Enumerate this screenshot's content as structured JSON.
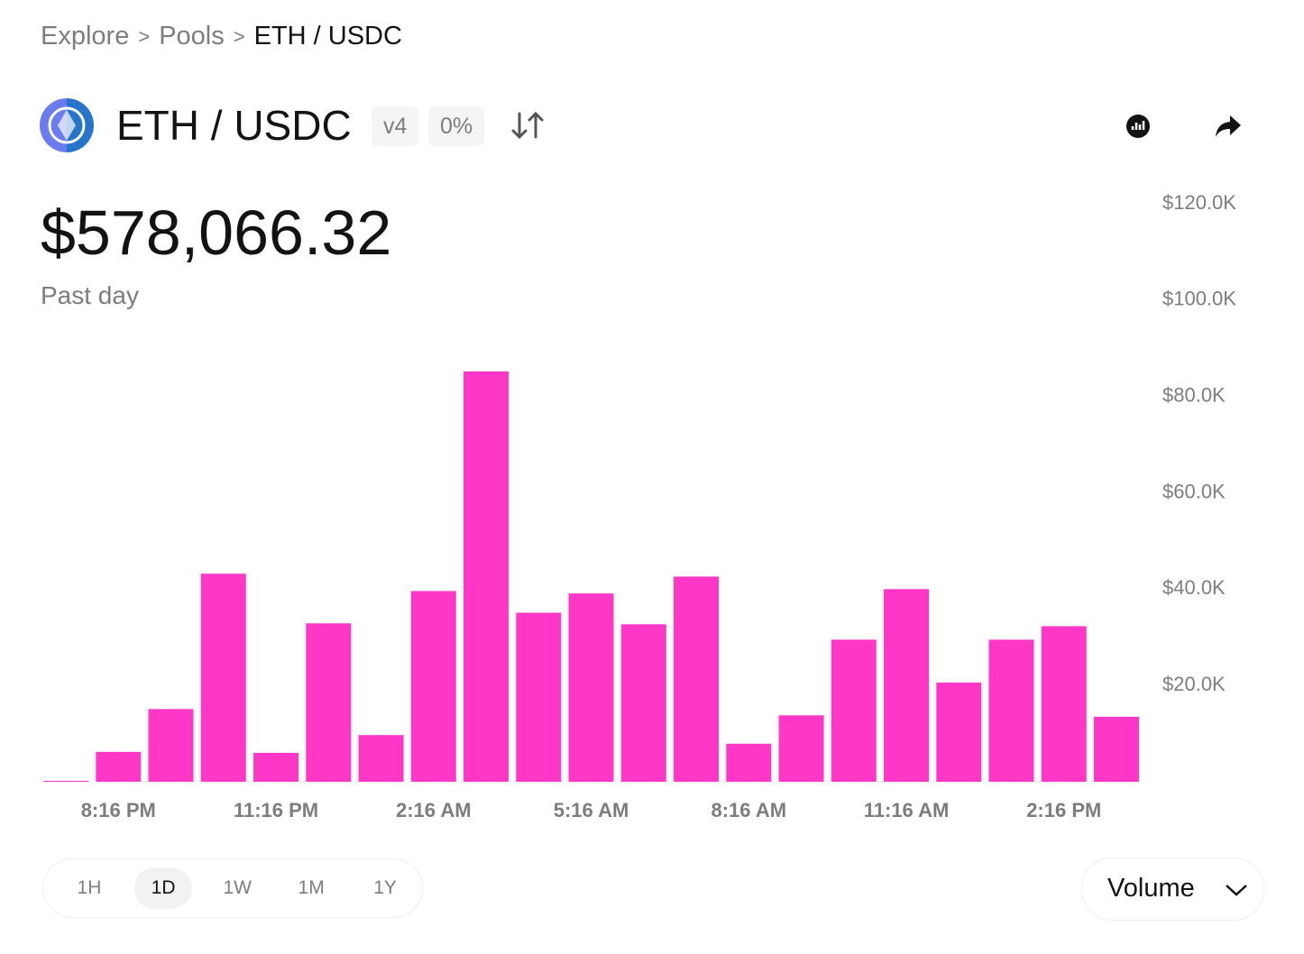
{
  "breadcrumb": [
    "Explore",
    "Pools",
    "ETH / USDC"
  ],
  "header": {
    "pair": "ETH / USDC",
    "version": "v4",
    "fee": "0%"
  },
  "summary": {
    "value": "$578,066.32",
    "period": "Past day"
  },
  "chart_data": {
    "type": "bar",
    "color": "#ff37c7",
    "categories": [
      null,
      "8:16 PM",
      null,
      null,
      "11:16 PM",
      null,
      null,
      "2:16 AM",
      null,
      null,
      "5:16 AM",
      null,
      null,
      "8:16 AM",
      null,
      null,
      "11:16 AM",
      null,
      null,
      "2:16 PM",
      null
    ],
    "values": [
      200,
      6200,
      15100,
      43200,
      6000,
      32900,
      9700,
      39600,
      85200,
      35100,
      39100,
      32700,
      42600,
      7900,
      13800,
      29500,
      40000,
      20600,
      29500,
      32300,
      13500
    ],
    "ylim": [
      0,
      120000
    ],
    "yticks": [
      {
        "value": 20000,
        "label": "$20.0K"
      },
      {
        "value": 40000,
        "label": "$40.0K"
      },
      {
        "value": 60000,
        "label": "$60.0K"
      },
      {
        "value": 80000,
        "label": "$80.0K"
      },
      {
        "value": 100000,
        "label": "$100.0K"
      },
      {
        "value": 120000,
        "label": "$120.0K"
      }
    ],
    "grid": false
  },
  "time_ranges": [
    "1H",
    "1D",
    "1W",
    "1M",
    "1Y"
  ],
  "chart_selector": "Volume"
}
